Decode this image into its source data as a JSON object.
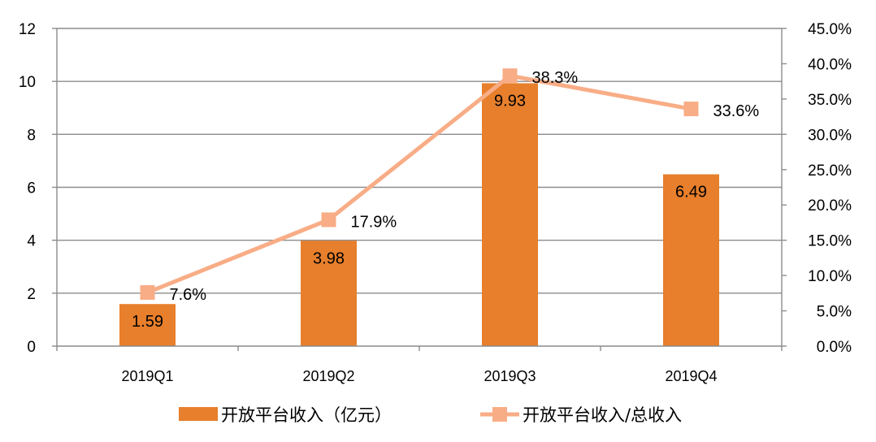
{
  "chart_data": {
    "type": "bar+line",
    "categories": [
      "2019Q1",
      "2019Q2",
      "2019Q3",
      "2019Q4"
    ],
    "series": [
      {
        "name": "开放平台收入（亿元）",
        "type": "bar",
        "axis": "left",
        "values": [
          1.59,
          3.98,
          9.93,
          6.49
        ],
        "labels": [
          "1.59",
          "3.98",
          "9.93",
          "6.49"
        ],
        "color": "#E77F2C"
      },
      {
        "name": "开放平台收入/总收入",
        "type": "line",
        "axis": "right",
        "values": [
          7.6,
          17.9,
          38.3,
          33.6
        ],
        "labels": [
          "7.6%",
          "17.9%",
          "38.3%",
          "33.6%"
        ],
        "color": "#F8AD86"
      }
    ],
    "y_left": {
      "min": 0,
      "max": 12,
      "ticks": [
        "0",
        "2",
        "4",
        "6",
        "8",
        "10",
        "12"
      ]
    },
    "y_right": {
      "min": 0,
      "max": 45,
      "ticks": [
        "0.0%",
        "5.0%",
        "10.0%",
        "15.0%",
        "20.0%",
        "25.0%",
        "30.0%",
        "35.0%",
        "40.0%",
        "45.0%"
      ]
    },
    "grid": true,
    "legend_position": "bottom"
  }
}
